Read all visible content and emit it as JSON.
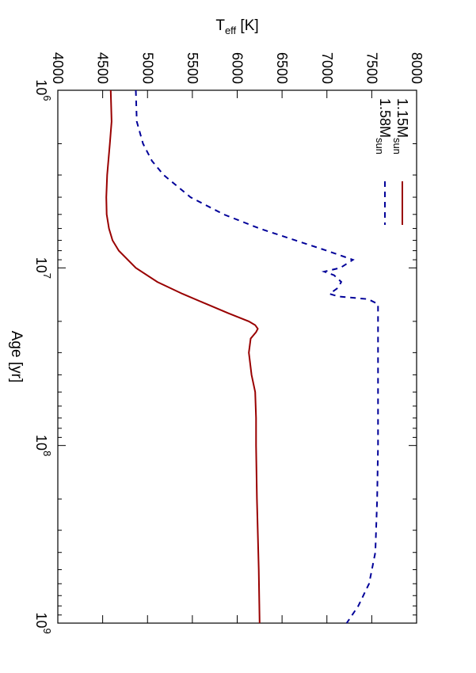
{
  "chart_data": {
    "type": "line",
    "xlabel": "Age [yr]",
    "ylabel_main": "T",
    "ylabel_sub": "eff",
    "ylabel_unit": " [K]",
    "x_scale": "log",
    "xlim": [
      1000000,
      1000000000
    ],
    "ylim": [
      4000,
      8000
    ],
    "x_ticks": [
      {
        "value": 1000000,
        "base": "10",
        "exp": "6"
      },
      {
        "value": 10000000,
        "base": "10",
        "exp": "7"
      },
      {
        "value": 100000000,
        "base": "10",
        "exp": "8"
      },
      {
        "value": 1000000000,
        "base": "10",
        "exp": "9"
      }
    ],
    "y_ticks": [
      "4000",
      "4500",
      "5000",
      "5500",
      "6000",
      "6500",
      "7000",
      "7500",
      "8000"
    ],
    "grid": false,
    "legend_placement": "top-left",
    "series": [
      {
        "name_main": "1.15M",
        "name_sub": "sun",
        "color": "#990000",
        "style": "solid",
        "x": [
          1000000,
          1500000,
          2000000,
          3000000,
          4000000,
          5000000,
          6000000,
          7000000,
          8000000,
          10000000,
          12000000,
          14000000,
          16000000,
          18000000,
          20000000,
          21000000,
          22000000,
          23000000,
          25000000,
          30000000,
          40000000,
          50000000,
          70000000,
          100000000,
          200000000,
          500000000,
          1000000000
        ],
        "y": [
          4590,
          4600,
          4580,
          4550,
          4540,
          4545,
          4570,
          4610,
          4680,
          4870,
          5110,
          5390,
          5660,
          5900,
          6130,
          6200,
          6230,
          6210,
          6150,
          6130,
          6160,
          6200,
          6210,
          6210,
          6220,
          6240,
          6250
        ]
      },
      {
        "name_main": "1.58M",
        "name_sub": "sun",
        "color": "#000099",
        "style": "dashed",
        "x": [
          1000000,
          1500000,
          2000000,
          2500000,
          3000000,
          4000000,
          5000000,
          6000000,
          7000000,
          8000000,
          9000000,
          10000000,
          10500000,
          11000000,
          12000000,
          13000000,
          14000000,
          14500000,
          15000000,
          16000000,
          20000000,
          50000000,
          100000000,
          200000000,
          400000000,
          600000000,
          800000000,
          1000000000
        ],
        "y": [
          4870,
          4880,
          4950,
          5050,
          5180,
          5480,
          5850,
          6250,
          6650,
          7000,
          7290,
          7150,
          6970,
          7080,
          7160,
          7120,
          7030,
          7130,
          7460,
          7570,
          7570,
          7570,
          7570,
          7560,
          7540,
          7470,
          7350,
          7220
        ]
      }
    ]
  }
}
